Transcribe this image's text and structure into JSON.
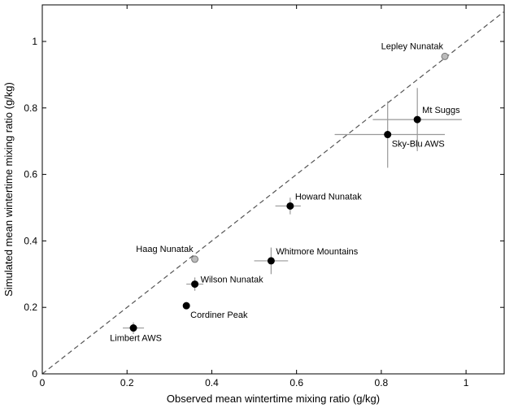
{
  "chart_data": {
    "type": "scatter",
    "xlabel": "Observed mean wintertime mixing ratio (g/kg)",
    "ylabel": "Simulated mean wintertime mixing ratio (g/kg)",
    "xlim": [
      0,
      1.09
    ],
    "ylim": [
      0,
      1.11
    ],
    "xticks": [
      0,
      0.2,
      0.4,
      0.6,
      0.8,
      1
    ],
    "yticks": [
      0,
      0.2,
      0.4,
      0.6,
      0.8,
      1
    ],
    "xtick_labels": [
      "0",
      "0.2",
      "0.4",
      "0.6",
      "0.8",
      "1"
    ],
    "ytick_labels": [
      "0",
      "0.2",
      "0.4",
      "0.6",
      "0.8",
      "1"
    ],
    "grid": false,
    "reference_line": "1:1 dashed",
    "points": [
      {
        "name": "Lepley Nunatak",
        "x": 0.95,
        "y": 0.955,
        "fill": "#bbbbbb",
        "label_pos": "above-left"
      },
      {
        "name": "Mt Suggs",
        "x": 0.885,
        "y": 0.765,
        "fill": "#000000",
        "xerr": [
          0.78,
          0.99
        ],
        "yerr": [
          0.67,
          0.86
        ],
        "label_pos": "above-right"
      },
      {
        "name": "Sky-Blu AWS",
        "x": 0.815,
        "y": 0.72,
        "fill": "#000000",
        "xerr": [
          0.69,
          0.95
        ],
        "yerr": [
          0.62,
          0.82
        ],
        "label_pos": "below-right"
      },
      {
        "name": "Howard Nunatak",
        "x": 0.585,
        "y": 0.505,
        "fill": "#000000",
        "xerr": [
          0.55,
          0.61
        ],
        "yerr": [
          0.48,
          0.53
        ],
        "label_pos": "above-right"
      },
      {
        "name": "Haag Nunatak",
        "x": 0.36,
        "y": 0.345,
        "fill": "#bbbbbb",
        "label_pos": "above-left"
      },
      {
        "name": "Whitmore Mountains",
        "x": 0.54,
        "y": 0.34,
        "fill": "#000000",
        "xerr": [
          0.5,
          0.58
        ],
        "yerr": [
          0.3,
          0.38
        ],
        "label_pos": "above-right"
      },
      {
        "name": "Wilson Nunatak",
        "x": 0.36,
        "y": 0.27,
        "fill": "#000000",
        "xerr": [
          0.34,
          0.38
        ],
        "yerr": [
          0.25,
          0.29
        ],
        "label_pos": "right"
      },
      {
        "name": "Cordiner Peak",
        "x": 0.34,
        "y": 0.205,
        "fill": "#000000",
        "label_pos": "below-right"
      },
      {
        "name": "Limbert AWS",
        "x": 0.215,
        "y": 0.138,
        "fill": "#000000",
        "xerr": [
          0.19,
          0.24
        ],
        "yerr": [
          0.12,
          0.155
        ],
        "label_pos": "below-left"
      }
    ]
  }
}
